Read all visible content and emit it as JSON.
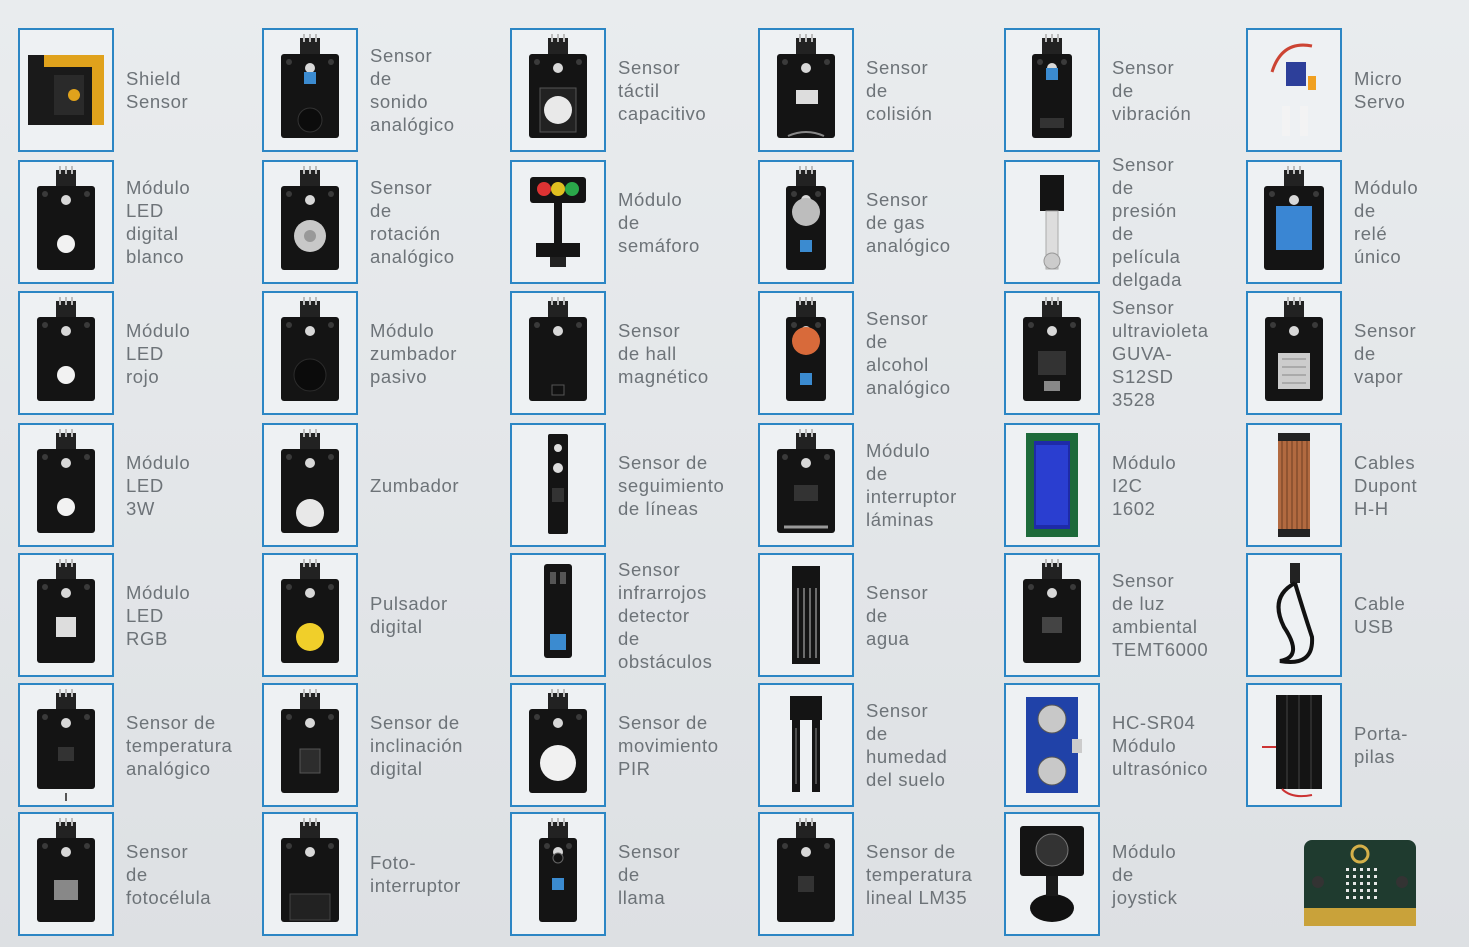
{
  "columns": [
    {
      "items": [
        {
          "icon": "shield-sensor-board-icon",
          "label": "Shield\nSensor"
        },
        {
          "icon": "led-module-icon",
          "label": "Módulo\nLED digital\nblanco"
        },
        {
          "icon": "led-module-icon",
          "label": "Módulo\nLED rojo"
        },
        {
          "icon": "led-module-icon",
          "label": "Módulo\nLED 3W"
        },
        {
          "icon": "rgb-led-module-icon",
          "label": "Módulo\nLED RGB"
        },
        {
          "icon": "temperature-sensor-icon",
          "label": "Sensor de\ntemperatura\nanalógico"
        },
        {
          "icon": "photocell-sensor-icon",
          "label": "Sensor de\nfotocélula"
        }
      ]
    },
    {
      "items": [
        {
          "icon": "sound-sensor-icon",
          "label": "Sensor de\nsonido\nanalógico"
        },
        {
          "icon": "rotation-sensor-icon",
          "label": "Sensor de\nrotación\nanalógico"
        },
        {
          "icon": "passive-buzzer-icon",
          "label": "Módulo\nzumbador\npasivo"
        },
        {
          "icon": "buzzer-icon",
          "label": "Zumbador"
        },
        {
          "icon": "push-button-icon",
          "label": "Pulsador\ndigital"
        },
        {
          "icon": "tilt-sensor-icon",
          "label": "Sensor de\ninclinación\ndigital"
        },
        {
          "icon": "photo-interrupter-icon",
          "label": "Foto-\ninterruptor"
        }
      ]
    },
    {
      "items": [
        {
          "icon": "touch-sensor-icon",
          "label": "Sensor táctil\ncapacitivo"
        },
        {
          "icon": "traffic-light-icon",
          "label": "Módulo de\nsemáforo"
        },
        {
          "icon": "hall-sensor-icon",
          "label": "Sensor\nde hall\nmagnético"
        },
        {
          "icon": "line-tracking-sensor-icon",
          "label": "Sensor de\nseguimiento\nde líneas"
        },
        {
          "icon": "infrared-obstacle-sensor-icon",
          "label": "Sensor\ninfrarrojos\ndetector de\nobstáculos"
        },
        {
          "icon": "pir-motion-sensor-icon",
          "label": "Sensor de\nmovimiento\nPIR"
        },
        {
          "icon": "flame-sensor-icon",
          "label": "Sensor de\nllama"
        }
      ]
    },
    {
      "items": [
        {
          "icon": "collision-sensor-icon",
          "label": "Sensor de\ncolisión"
        },
        {
          "icon": "gas-sensor-icon",
          "label": "Sensor\nde gas\nanalógico"
        },
        {
          "icon": "alcohol-sensor-icon",
          "label": "Sensor de\nalcohol\nanalógico"
        },
        {
          "icon": "reed-switch-icon",
          "label": "Módulo de\ninterruptor\nláminas"
        },
        {
          "icon": "water-sensor-icon",
          "label": "Sensor de\nagua"
        },
        {
          "icon": "soil-moisture-sensor-icon",
          "label": "Sensor de\nhumedad\ndel suelo"
        },
        {
          "icon": "lm35-sensor-icon",
          "label": "Sensor de\ntemperatura\nlineal LM35"
        }
      ]
    },
    {
      "items": [
        {
          "icon": "vibration-sensor-icon",
          "label": "Sensor de\nvibración"
        },
        {
          "icon": "film-pressure-sensor-icon",
          "label": "Sensor de\npresión de\npelícula\ndelgada"
        },
        {
          "icon": "uv-sensor-icon",
          "label": "Sensor\nultravioleta\nGUVA-\nS12SD 3528"
        },
        {
          "icon": "lcd-1602-icon",
          "label": "Módulo I2C\n1602"
        },
        {
          "icon": "ambient-light-sensor-icon",
          "label": "Sensor\nde luz\nambiental\nTEMT6000"
        },
        {
          "icon": "ultrasonic-sensor-icon",
          "label": "HC-SR04\nMódulo\nultrasónico"
        },
        {
          "icon": "joystick-icon",
          "label": "Módulo de\njoystick"
        }
      ]
    },
    {
      "items": [
        {
          "icon": "micro-servo-icon",
          "label": "Micro Servo"
        },
        {
          "icon": "relay-module-icon",
          "label": "Módulo de\nrelé único"
        },
        {
          "icon": "steam-sensor-icon",
          "label": "Sensor de\nvapor"
        },
        {
          "icon": "dupont-cables-icon",
          "label": "Cables\nDupont H-H"
        },
        {
          "icon": "usb-cable-icon",
          "label": "Cable USB"
        },
        {
          "icon": "battery-holder-icon",
          "label": "Porta-pilas"
        }
      ]
    }
  ],
  "extra": {
    "icon": "microbit-board-icon"
  }
}
